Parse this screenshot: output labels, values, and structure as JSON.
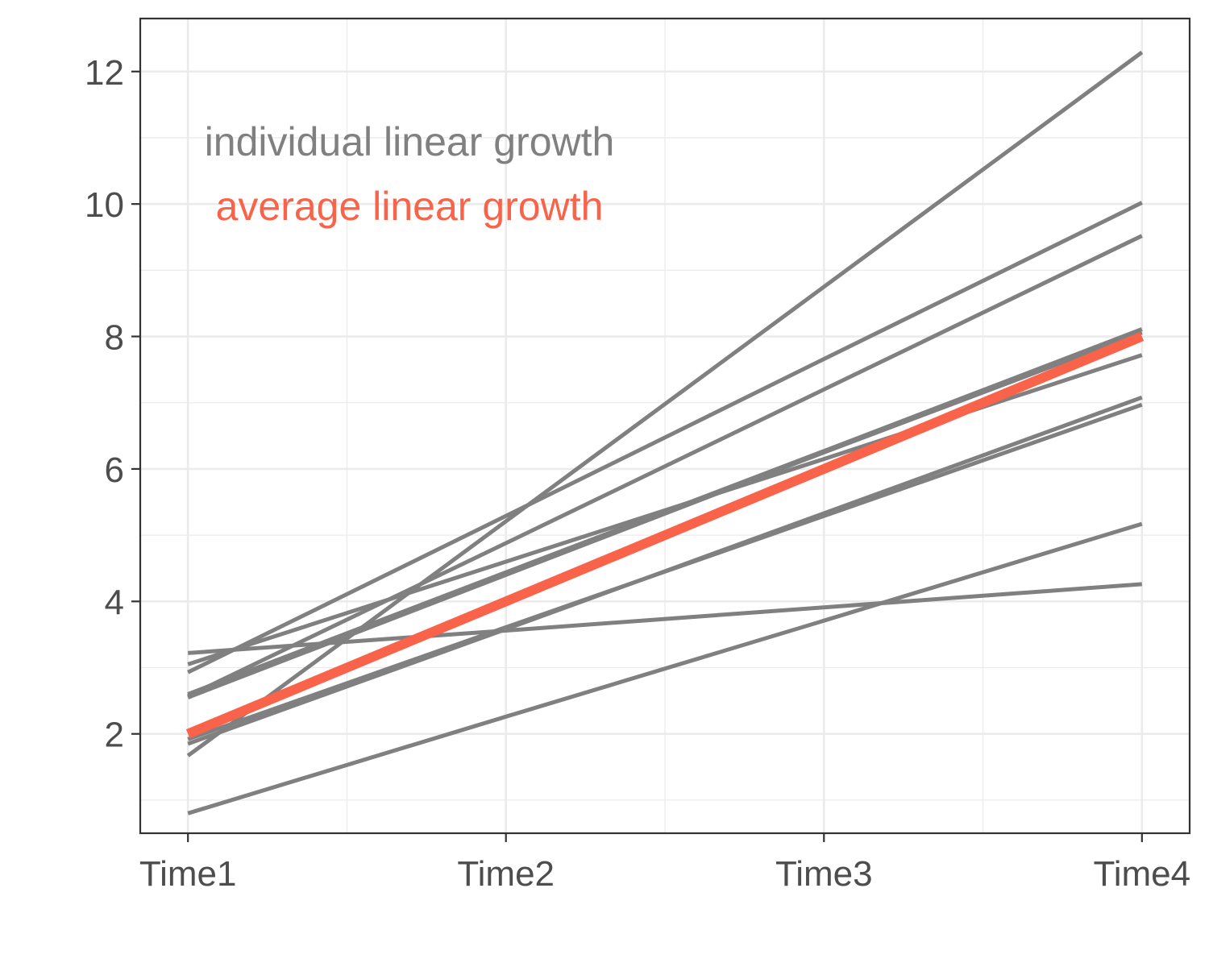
{
  "chart_data": {
    "type": "line",
    "title": "",
    "xlabel": "",
    "ylabel": "",
    "categories": [
      "Time1",
      "Time2",
      "Time3",
      "Time4"
    ],
    "x": [
      1,
      2,
      3,
      4
    ],
    "xlim": [
      0.85,
      4.15
    ],
    "ylim": [
      0.5,
      12.8
    ],
    "y_ticks": [
      2,
      4,
      6,
      8,
      10,
      12
    ],
    "y_tick_labels": [
      "2",
      "4",
      "6",
      "8",
      "10",
      "12"
    ],
    "grid": true,
    "annotations": [
      {
        "text": "individual linear growth",
        "color": "#808080"
      },
      {
        "text": "average linear growth",
        "color": "#f8634a"
      }
    ],
    "series": [
      {
        "values": [
          1.67,
          5.21,
          8.75,
          12.29
        ],
        "color": "#808080"
      },
      {
        "values": [
          2.93,
          5.29,
          7.66,
          10.02
        ],
        "color": "#808080"
      },
      {
        "values": [
          2.57,
          4.88,
          7.2,
          9.52
        ],
        "color": "#808080"
      },
      {
        "values": [
          2.6,
          4.44,
          6.27,
          8.11
        ],
        "color": "#808080"
      },
      {
        "values": [
          2.55,
          4.4,
          6.25,
          8.06
        ],
        "color": "#808080"
      },
      {
        "values": [
          3.05,
          4.6,
          6.15,
          7.72
        ],
        "color": "#808080"
      },
      {
        "values": [
          1.85,
          3.58,
          5.33,
          7.08
        ],
        "color": "#808080"
      },
      {
        "values": [
          1.92,
          3.61,
          5.29,
          6.97
        ],
        "color": "#808080"
      },
      {
        "values": [
          3.22,
          3.56,
          3.91,
          4.26
        ],
        "color": "#808080"
      },
      {
        "values": [
          0.8,
          2.26,
          3.71,
          5.17
        ],
        "color": "#808080"
      },
      {
        "values": [
          2.0,
          4.0,
          6.0,
          8.0
        ],
        "color": "#f8634a",
        "emphasis": true
      }
    ]
  }
}
